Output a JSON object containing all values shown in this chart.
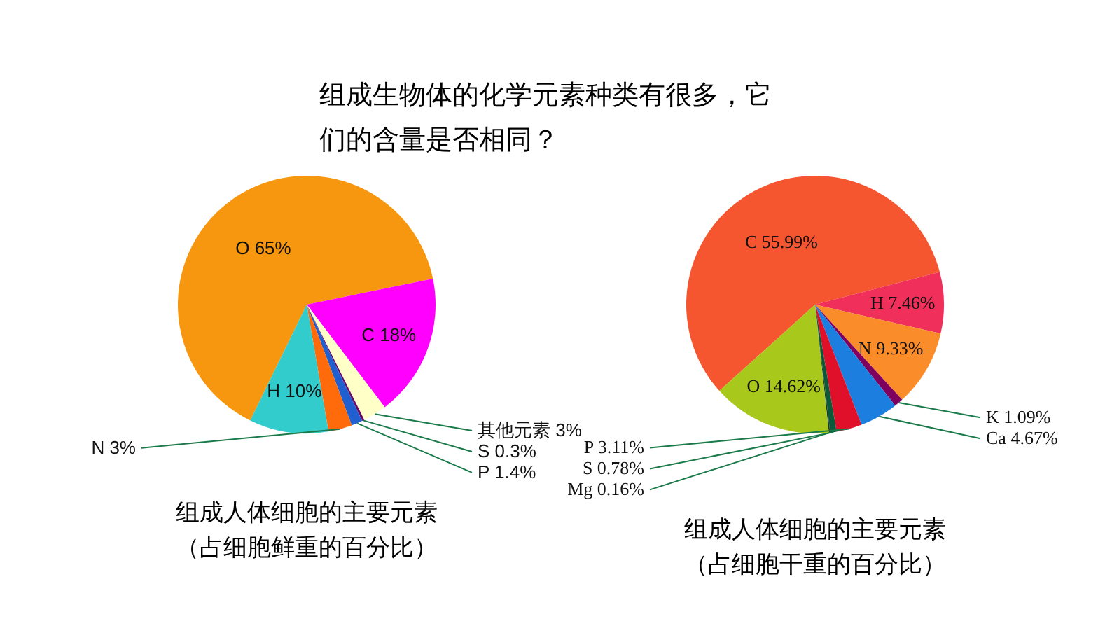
{
  "chart_data": [
    {
      "type": "other",
      "title": "组成生物体的化学元素种类有很多，它们的含量是否相同？"
    },
    {
      "type": "pie",
      "title": "组成人体细胞的主要元素",
      "subtitle": "（占细胞鲜重的百分比）",
      "categories": [
        "O 65%",
        "C 18%",
        "其他元素  3%",
        "S 0.3%",
        "P 1.4%",
        "N 3%",
        "H 10%"
      ],
      "values": [
        65,
        18,
        3,
        0.3,
        1.4,
        3,
        10
      ],
      "colors": [
        "#f7960f",
        "#ff00ff",
        "#ffffc8",
        "#6a0a6a",
        "#1f5fd0",
        "#ff6a0a",
        "#33cccc"
      ]
    },
    {
      "type": "pie",
      "title": "组成人体细胞的主要元素",
      "subtitle": "（占细胞干重的百分比）",
      "categories": [
        "C 55.99%",
        "H 7.46%",
        "N 9.33%",
        "K 1.09%",
        "Ca 4.67%",
        "P 3.11%",
        "S 0.78%",
        "Mg 0.16%",
        "O 14.62%"
      ],
      "values": [
        55.99,
        7.46,
        9.33,
        1.09,
        4.67,
        3.11,
        0.78,
        0.16,
        14.62
      ],
      "colors": [
        "#f5552f",
        "#f0305a",
        "#fb8c2a",
        "#800060",
        "#1c7fe0",
        "#e0102a",
        "#0a5a3a",
        "#1a3a2a",
        "#a8c81c"
      ]
    }
  ]
}
